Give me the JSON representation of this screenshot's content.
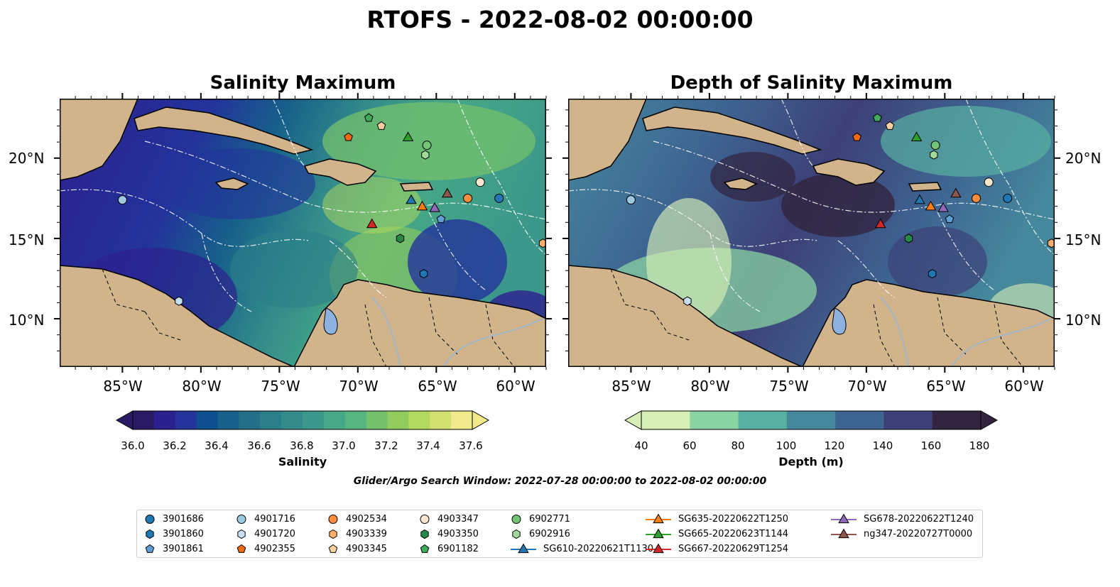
{
  "figure": {
    "suptitle": "RTOFS - 2022-08-02 00:00:00",
    "search_window": "Glider/Argo Search Window: 2022-07-28 00:00:00 to 2022-08-02 00:00:00"
  },
  "panels": [
    {
      "title": "Salinity Maximum",
      "colormap": "haline",
      "colorbar": {
        "label": "Salinity",
        "ticks": [
          "36.0",
          "36.2",
          "36.4",
          "36.6",
          "36.8",
          "37.0",
          "37.2",
          "37.4",
          "37.6"
        ],
        "colors": [
          "#2a1b64",
          "#2c1f8e",
          "#23339b",
          "#0d4f90",
          "#17618a",
          "#236e88",
          "#2c7e89",
          "#338b8a",
          "#3c988a",
          "#46a886",
          "#55b480",
          "#74c06c",
          "#93cc5e",
          "#b3d95c",
          "#d2e06e",
          "#f2e98c"
        ],
        "extend": "both"
      }
    },
    {
      "title": "Depth of Salinity Maximum",
      "colormap": "deep",
      "colorbar": {
        "label": "Depth (m)",
        "ticks": [
          "40",
          "60",
          "80",
          "100",
          "120",
          "140",
          "160",
          "180"
        ],
        "colors": [
          "#d7efb6",
          "#8ad3a2",
          "#58b0a2",
          "#45889c",
          "#3e6592",
          "#3d4077",
          "#31243f"
        ],
        "extend": "both"
      }
    }
  ],
  "axes": {
    "lon_ticks": [
      "85°W",
      "80°W",
      "75°W",
      "70°W",
      "65°W",
      "60°W"
    ],
    "lat_ticks": [
      "20°N",
      "15°N",
      "10°N"
    ]
  },
  "legend": {
    "items": [
      {
        "label": "3901686",
        "marker": "circle",
        "color": "#1f77b4"
      },
      {
        "label": "3901860",
        "marker": "hexagon",
        "color": "#1f77b4"
      },
      {
        "label": "3901861",
        "marker": "pentagon",
        "color": "#5f9fd8"
      },
      {
        "label": "4901716",
        "marker": "circle",
        "color": "#9ecae1"
      },
      {
        "label": "4901720",
        "marker": "hexagon",
        "color": "#c6e0f2"
      },
      {
        "label": "4902355",
        "marker": "pentagon",
        "color": "#f16913"
      },
      {
        "label": "4902534",
        "marker": "circle",
        "color": "#fd8d3c"
      },
      {
        "label": "4903339",
        "marker": "hexagon",
        "color": "#fdae6b"
      },
      {
        "label": "4903345",
        "marker": "pentagon",
        "color": "#fdd0a2"
      },
      {
        "label": "4903347",
        "marker": "circle",
        "color": "#fee6ce"
      },
      {
        "label": "4903350",
        "marker": "hexagon",
        "color": "#238b45"
      },
      {
        "label": "6901182",
        "marker": "pentagon",
        "color": "#41ab5d"
      },
      {
        "label": "6902771",
        "marker": "circle",
        "color": "#74c476"
      },
      {
        "label": "6902916",
        "marker": "hexagon",
        "color": "#a1d99b"
      },
      {
        "label": "SG610-20220621T1130",
        "marker": "triangle-line",
        "color": "#1f77b4"
      },
      {
        "label": "SG635-20220622T1250",
        "marker": "triangle-line",
        "color": "#ff7f0e"
      },
      {
        "label": "SG665-20220623T1144",
        "marker": "triangle-line",
        "color": "#2ca02c"
      },
      {
        "label": "SG667-20220629T1254",
        "marker": "triangle-line",
        "color": "#d62728"
      },
      {
        "label": "SG678-20220622T1240",
        "marker": "triangle-line",
        "color": "#9467bd"
      },
      {
        "label": "ng347-20220727T0000",
        "marker": "triangle-line",
        "color": "#8c564b"
      }
    ]
  },
  "observations": [
    {
      "id": "3901686",
      "lon": -61.0,
      "lat": 17.5
    },
    {
      "id": "3901860",
      "lon": -65.8,
      "lat": 12.8
    },
    {
      "id": "3901861",
      "lon": -64.7,
      "lat": 16.2
    },
    {
      "id": "4901716",
      "lon": -85.0,
      "lat": 17.4
    },
    {
      "id": "4901720",
      "lon": -81.4,
      "lat": 11.1
    },
    {
      "id": "4902355",
      "lon": -70.6,
      "lat": 21.3
    },
    {
      "id": "4902534",
      "lon": -63.0,
      "lat": 17.5
    },
    {
      "id": "4903339",
      "lon": -58.2,
      "lat": 14.7
    },
    {
      "id": "4903345",
      "lon": -68.5,
      "lat": 22.0
    },
    {
      "id": "4903347",
      "lon": -62.2,
      "lat": 18.5
    },
    {
      "id": "4903350",
      "lon": -67.3,
      "lat": 15.0
    },
    {
      "id": "6901182",
      "lon": -69.3,
      "lat": 22.5
    },
    {
      "id": "6902771",
      "lon": -65.6,
      "lat": 20.8
    },
    {
      "id": "6902916",
      "lon": -65.7,
      "lat": 20.2
    },
    {
      "id": "SG610-20220621T1130",
      "lon": -66.6,
      "lat": 17.4
    },
    {
      "id": "SG635-20220622T1250",
      "lon": -65.9,
      "lat": 17.0
    },
    {
      "id": "SG665-20220623T1144",
      "lon": -66.8,
      "lat": 21.3
    },
    {
      "id": "SG667-20220629T1254",
      "lon": -69.1,
      "lat": 15.9
    },
    {
      "id": "SG678-20220622T1240",
      "lon": -65.1,
      "lat": 16.9
    },
    {
      "id": "ng347-20220727T0000",
      "lon": -64.3,
      "lat": 17.8
    }
  ]
}
